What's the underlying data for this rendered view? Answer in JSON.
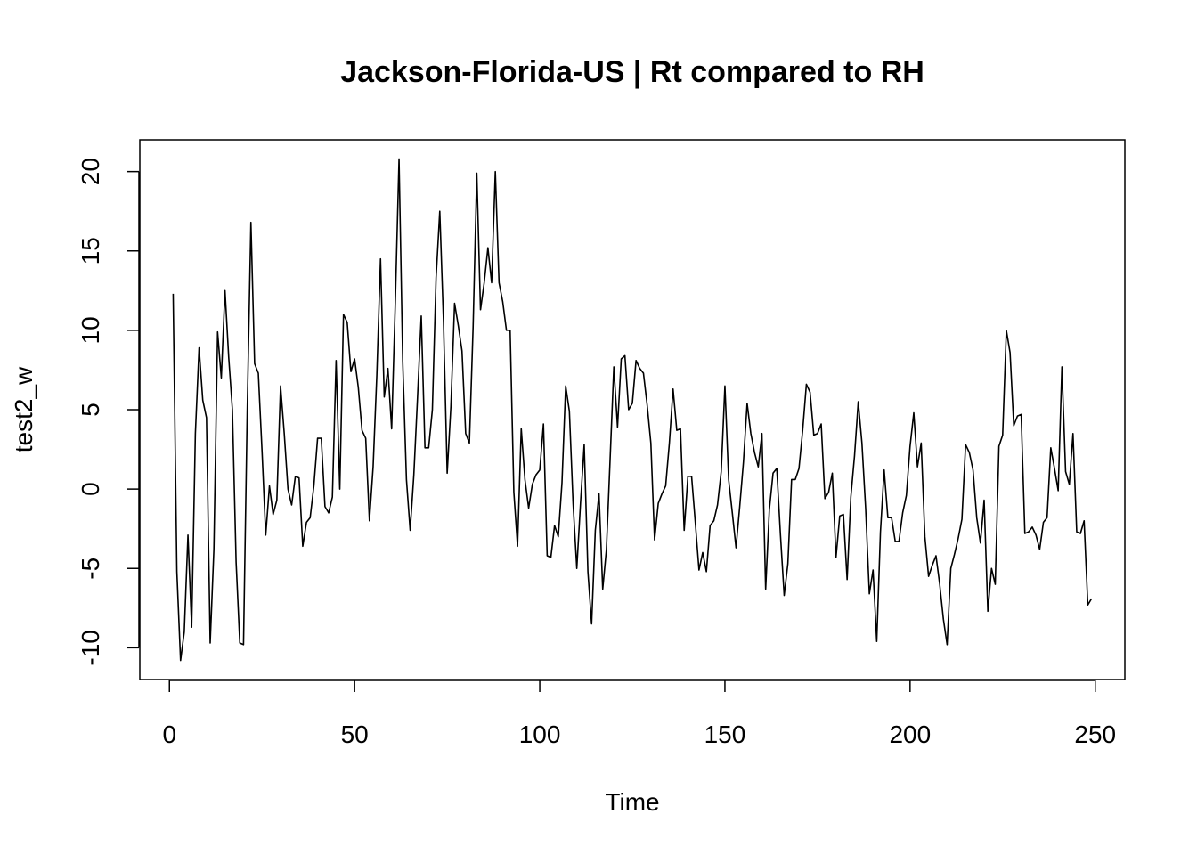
{
  "chart_data": {
    "type": "line",
    "title": "Jackson-Florida-US | Rt compared to RH",
    "xlabel": "Time",
    "ylabel": "test2_w",
    "xlim": [
      -8,
      258
    ],
    "ylim": [
      -12,
      22
    ],
    "xticks": [
      0,
      50,
      100,
      150,
      200,
      250
    ],
    "yticks": [
      -10,
      -5,
      0,
      5,
      10,
      15,
      20
    ],
    "grid": false,
    "legend": "none",
    "line_color": "#000000",
    "series": [
      {
        "x_start": 1,
        "values": [
          12.3,
          -5.2,
          -10.8,
          -9.0,
          -2.9,
          -8.7,
          3.5,
          8.9,
          5.6,
          4.5,
          -9.7,
          -3.8,
          9.9,
          7.0,
          12.5,
          8.3,
          5.0,
          -4.6,
          -9.7,
          -9.8,
          4.9,
          16.8,
          7.9,
          7.3,
          2.4,
          -2.9,
          0.2,
          -1.6,
          -0.7,
          6.5,
          3.5,
          0.0,
          -1.0,
          0.8,
          0.7,
          -3.6,
          -2.1,
          -1.8,
          0.2,
          3.2,
          3.2,
          -1.1,
          -1.5,
          -0.5,
          8.1,
          0.0,
          11.0,
          10.5,
          7.4,
          8.2,
          6.4,
          3.7,
          3.2,
          -2.0,
          1.4,
          7.2,
          14.5,
          5.8,
          7.6,
          3.8,
          11.8,
          20.8,
          8.0,
          0.6,
          -2.6,
          0.9,
          5.8,
          10.9,
          2.6,
          2.6,
          5.0,
          13.3,
          17.5,
          10.6,
          1.0,
          5.2,
          11.7,
          10.3,
          8.7,
          3.5,
          2.9,
          10.2,
          19.9,
          11.3,
          13.0,
          15.2,
          13.0,
          20.0,
          13.0,
          11.8,
          10.0,
          10.0,
          -0.2,
          -3.6,
          3.8,
          0.6,
          -1.2,
          0.3,
          0.9,
          1.2,
          4.1,
          -4.2,
          -4.3,
          -2.3,
          -3.0,
          0.4,
          6.5,
          4.9,
          -0.9,
          -5.0,
          -0.9,
          2.8,
          -5.2,
          -8.5,
          -2.6,
          -0.3,
          -6.3,
          -3.8,
          1.9,
          7.7,
          3.9,
          8.2,
          8.4,
          5.0,
          5.4,
          8.1,
          7.6,
          7.3,
          5.3,
          2.9,
          -3.2,
          -0.9,
          -0.3,
          0.2,
          2.9,
          6.3,
          3.7,
          3.8,
          -2.6,
          0.8,
          0.8,
          -2.1,
          -5.1,
          -4.0,
          -5.2,
          -2.3,
          -2.0,
          -1.0,
          1.1,
          6.5,
          0.6,
          -1.5,
          -3.7,
          -1.1,
          1.7,
          5.4,
          3.5,
          2.3,
          1.4,
          3.5,
          -6.3,
          -1.3,
          1.0,
          1.3,
          -2.9,
          -6.7,
          -4.7,
          0.6,
          0.6,
          1.3,
          3.7,
          6.6,
          6.1,
          3.4,
          3.5,
          4.1,
          -0.6,
          -0.2,
          1.0,
          -4.3,
          -1.7,
          -1.6,
          -5.7,
          -0.5,
          2.1,
          5.5,
          2.9,
          -1.2,
          -6.6,
          -5.1,
          -9.6,
          -2.7,
          1.2,
          -1.8,
          -1.8,
          -3.3,
          -3.3,
          -1.5,
          -0.4,
          2.7,
          4.8,
          1.4,
          2.9,
          -3.0,
          -5.5,
          -4.8,
          -4.2,
          -6.0,
          -8.2,
          -9.8,
          -5.0,
          -4.1,
          -3.1,
          -1.9,
          2.8,
          2.3,
          1.2,
          -1.8,
          -3.4,
          -0.7,
          -7.7,
          -5.0,
          -6.0,
          2.7,
          3.4,
          10.0,
          8.6,
          4.0,
          4.6,
          4.7,
          -2.8,
          -2.7,
          -2.4,
          -2.9,
          -3.8,
          -2.1,
          -1.8,
          2.6,
          1.3,
          -0.1,
          7.7,
          1.1,
          0.3,
          3.5,
          -2.7,
          -2.8,
          -2.0,
          -7.3,
          -6.9
        ]
      }
    ]
  }
}
